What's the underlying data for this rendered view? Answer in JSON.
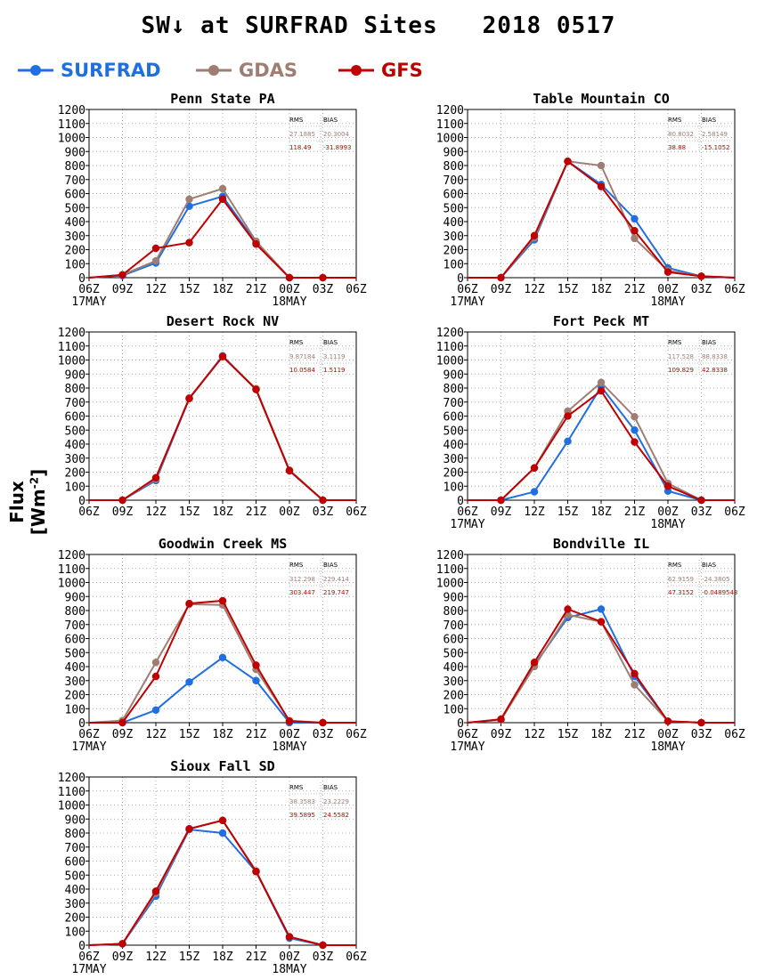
{
  "figure": {
    "title": "SW↓ at SURFRAD Sites   2018 0517",
    "ylabel": "Flux [Wm",
    "ylabel_sup": "-2",
    "ylabel_close": "]"
  },
  "legend": [
    {
      "name": "SURFRAD",
      "color": "#1f6fe0"
    },
    {
      "name": "GDAS",
      "color": "#a07d73"
    },
    {
      "name": "GFS",
      "color": "#c00000"
    }
  ],
  "chart_data": [
    {
      "type": "line",
      "title": "Penn State PA",
      "x_ticks": [
        "06Z",
        "09Z",
        "12Z",
        "15Z",
        "18Z",
        "21Z",
        "00Z",
        "03Z",
        "06Z"
      ],
      "date_labels": [
        "17MAY",
        "18MAY"
      ],
      "ylim": [
        0,
        1200
      ],
      "y_ticks": [
        0,
        100,
        200,
        300,
        400,
        500,
        600,
        700,
        800,
        900,
        1000,
        1100,
        1200
      ],
      "grid": true,
      "stats": {
        "headers": [
          "RMS",
          "BIAS"
        ],
        "gdas": [
          "27.1885",
          "20.3004"
        ],
        "gfs": [
          "118.49",
          "-31.8993"
        ]
      },
      "series": [
        {
          "name": "SURFRAD",
          "values": [
            0,
            15,
            105,
            510,
            580,
            250,
            0,
            0,
            0
          ]
        },
        {
          "name": "GDAS",
          "values": [
            0,
            20,
            120,
            560,
            635,
            260,
            0,
            0,
            0
          ]
        },
        {
          "name": "GFS",
          "values": [
            0,
            20,
            210,
            250,
            560,
            240,
            0,
            0,
            0
          ]
        }
      ]
    },
    {
      "type": "line",
      "title": "Table Mountain CO",
      "x_ticks": [
        "06Z",
        "09Z",
        "12Z",
        "15Z",
        "18Z",
        "21Z",
        "00Z",
        "03Z",
        "06Z"
      ],
      "date_labels": [
        "17MAY",
        "18MAY"
      ],
      "ylim": [
        0,
        1200
      ],
      "y_ticks": [
        0,
        100,
        200,
        300,
        400,
        500,
        600,
        700,
        800,
        900,
        1000,
        1100,
        1200
      ],
      "grid": true,
      "stats": {
        "headers": [
          "RMS",
          "BIAS"
        ],
        "gdas": [
          "80.8032",
          "2.58149"
        ],
        "gfs": [
          "38.88",
          "-15.1052"
        ]
      },
      "series": [
        {
          "name": "SURFRAD",
          "values": [
            0,
            0,
            270,
            830,
            665,
            420,
            70,
            10,
            0
          ]
        },
        {
          "name": "GDAS",
          "values": [
            0,
            0,
            285,
            830,
            800,
            280,
            50,
            10,
            0
          ]
        },
        {
          "name": "GFS",
          "values": [
            0,
            0,
            300,
            830,
            650,
            335,
            40,
            10,
            0
          ]
        }
      ]
    },
    {
      "type": "line",
      "title": "Desert Rock NV",
      "x_ticks": [
        "06Z",
        "09Z",
        "12Z",
        "15Z",
        "18Z",
        "21Z",
        "00Z",
        "03Z",
        "06Z"
      ],
      "date_labels": [],
      "ylim": [
        0,
        1200
      ],
      "y_ticks": [
        0,
        100,
        200,
        300,
        400,
        500,
        600,
        700,
        800,
        900,
        1000,
        1100,
        1200
      ],
      "grid": true,
      "stats": {
        "headers": [
          "RMS",
          "BIAS"
        ],
        "gdas": [
          "9.87184",
          "3.1119"
        ],
        "gfs": [
          "10.0584",
          "1.5119"
        ]
      },
      "series": [
        {
          "name": "SURFRAD",
          "values": [
            0,
            0,
            140,
            725,
            1030,
            790,
            210,
            0,
            0
          ]
        },
        {
          "name": "GDAS",
          "values": [
            0,
            0,
            150,
            730,
            1025,
            795,
            215,
            0,
            0
          ]
        },
        {
          "name": "GFS",
          "values": [
            0,
            0,
            160,
            725,
            1025,
            790,
            210,
            0,
            0
          ]
        }
      ]
    },
    {
      "type": "line",
      "title": "Fort Peck MT",
      "x_ticks": [
        "06Z",
        "09Z",
        "12Z",
        "15Z",
        "18Z",
        "21Z",
        "00Z",
        "03Z",
        "06Z"
      ],
      "date_labels": [
        "17MAY",
        "18MAY"
      ],
      "ylim": [
        0,
        1200
      ],
      "y_ticks": [
        0,
        100,
        200,
        300,
        400,
        500,
        600,
        700,
        800,
        900,
        1000,
        1100,
        1200
      ],
      "grid": true,
      "stats": {
        "headers": [
          "RMS",
          "BIAS"
        ],
        "gdas": [
          "117.528",
          "88.8338"
        ],
        "gfs": [
          "109.829",
          "42.8338"
        ]
      },
      "series": [
        {
          "name": "SURFRAD",
          "values": [
            0,
            0,
            60,
            420,
            810,
            500,
            65,
            0,
            0
          ]
        },
        {
          "name": "GDAS",
          "values": [
            0,
            0,
            230,
            635,
            840,
            595,
            120,
            0,
            0
          ]
        },
        {
          "name": "GFS",
          "values": [
            0,
            0,
            230,
            600,
            780,
            415,
            100,
            0,
            0
          ]
        }
      ]
    },
    {
      "type": "line",
      "title": "Goodwin Creek MS",
      "x_ticks": [
        "06Z",
        "09Z",
        "12Z",
        "15Z",
        "18Z",
        "21Z",
        "00Z",
        "03Z",
        "06Z"
      ],
      "date_labels": [
        "17MAY",
        "18MAY"
      ],
      "ylim": [
        0,
        1200
      ],
      "y_ticks": [
        0,
        100,
        200,
        300,
        400,
        500,
        600,
        700,
        800,
        900,
        1000,
        1100,
        1200
      ],
      "grid": true,
      "stats": {
        "headers": [
          "RMS",
          "BIAS"
        ],
        "gdas": [
          "312.298",
          "229.414"
        ],
        "gfs": [
          "303.447",
          "219.747"
        ]
      },
      "series": [
        {
          "name": "SURFRAD",
          "values": [
            0,
            0,
            90,
            290,
            465,
            300,
            0,
            0,
            0
          ]
        },
        {
          "name": "GDAS",
          "values": [
            0,
            15,
            430,
            845,
            840,
            380,
            15,
            0,
            0
          ]
        },
        {
          "name": "GFS",
          "values": [
            0,
            0,
            330,
            850,
            870,
            410,
            10,
            0,
            0
          ]
        }
      ]
    },
    {
      "type": "line",
      "title": "Bondville IL",
      "x_ticks": [
        "06Z",
        "09Z",
        "12Z",
        "15Z",
        "18Z",
        "21Z",
        "00Z",
        "03Z",
        "06Z"
      ],
      "date_labels": [
        "17MAY",
        "18MAY"
      ],
      "ylim": [
        0,
        1200
      ],
      "y_ticks": [
        0,
        100,
        200,
        300,
        400,
        500,
        600,
        700,
        800,
        900,
        1000,
        1100,
        1200
      ],
      "grid": true,
      "stats": {
        "headers": [
          "RMS",
          "BIAS"
        ],
        "gdas": [
          "62.9159",
          "-24.3805"
        ],
        "gfs": [
          "47.3152",
          "-0.0489543"
        ]
      },
      "series": [
        {
          "name": "SURFRAD",
          "values": [
            0,
            20,
            410,
            750,
            810,
            330,
            10,
            0,
            0
          ]
        },
        {
          "name": "GDAS",
          "values": [
            0,
            20,
            400,
            770,
            720,
            270,
            10,
            0,
            0
          ]
        },
        {
          "name": "GFS",
          "values": [
            0,
            25,
            430,
            810,
            720,
            350,
            10,
            0,
            0
          ]
        }
      ]
    },
    {
      "type": "line",
      "title": "Sioux Fall SD",
      "x_ticks": [
        "06Z",
        "09Z",
        "12Z",
        "15Z",
        "18Z",
        "21Z",
        "00Z",
        "03Z",
        "06Z"
      ],
      "date_labels": [
        "17MAY",
        "18MAY"
      ],
      "ylim": [
        0,
        1200
      ],
      "y_ticks": [
        0,
        100,
        200,
        300,
        400,
        500,
        600,
        700,
        800,
        900,
        1000,
        1100,
        1200
      ],
      "grid": true,
      "stats": {
        "headers": [
          "RMS",
          "BIAS"
        ],
        "gdas": [
          "38.3583",
          "23.2229"
        ],
        "gfs": [
          "39.5895",
          "24.5582"
        ]
      },
      "series": [
        {
          "name": "SURFRAD",
          "values": [
            0,
            10,
            350,
            825,
            800,
            525,
            50,
            0,
            0
          ]
        },
        {
          "name": "GDAS",
          "values": [
            0,
            10,
            370,
            830,
            890,
            530,
            60,
            0,
            0
          ]
        },
        {
          "name": "GFS",
          "values": [
            0,
            10,
            385,
            830,
            890,
            525,
            60,
            0,
            0
          ]
        }
      ]
    }
  ]
}
